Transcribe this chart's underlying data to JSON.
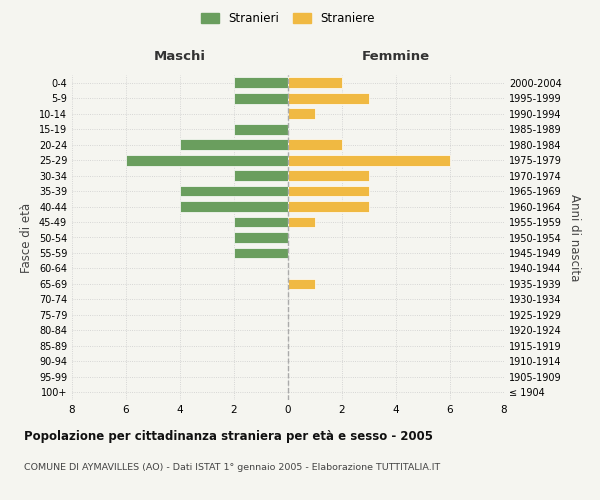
{
  "age_groups": [
    "100+",
    "95-99",
    "90-94",
    "85-89",
    "80-84",
    "75-79",
    "70-74",
    "65-69",
    "60-64",
    "55-59",
    "50-54",
    "45-49",
    "40-44",
    "35-39",
    "30-34",
    "25-29",
    "20-24",
    "15-19",
    "10-14",
    "5-9",
    "0-4"
  ],
  "birth_years": [
    "≤ 1904",
    "1905-1909",
    "1910-1914",
    "1915-1919",
    "1920-1924",
    "1925-1929",
    "1930-1934",
    "1935-1939",
    "1940-1944",
    "1945-1949",
    "1950-1954",
    "1955-1959",
    "1960-1964",
    "1965-1969",
    "1970-1974",
    "1975-1979",
    "1980-1984",
    "1985-1989",
    "1990-1994",
    "1995-1999",
    "2000-2004"
  ],
  "maschi": [
    0,
    0,
    0,
    0,
    0,
    0,
    0,
    0,
    0,
    2,
    2,
    2,
    4,
    4,
    2,
    6,
    4,
    2,
    0,
    2,
    2
  ],
  "femmine": [
    0,
    0,
    0,
    0,
    0,
    0,
    0,
    1,
    0,
    0,
    0,
    1,
    3,
    3,
    3,
    6,
    2,
    0,
    1,
    3,
    2
  ],
  "color_maschi": "#6a9e5e",
  "color_femmine": "#f0b942",
  "bg_color": "#f5f5f0",
  "title": "Popolazione per cittadinanza straniera per età e sesso - 2005",
  "subtitle": "COMUNE DI AYMAVILLES (AO) - Dati ISTAT 1° gennaio 2005 - Elaborazione TUTTITALIA.IT",
  "xlabel_left": "Maschi",
  "xlabel_right": "Femmine",
  "ylabel_left": "Fasce di età",
  "ylabel_right": "Anni di nascita",
  "legend_maschi": "Stranieri",
  "legend_femmine": "Straniere",
  "xlim": 8
}
